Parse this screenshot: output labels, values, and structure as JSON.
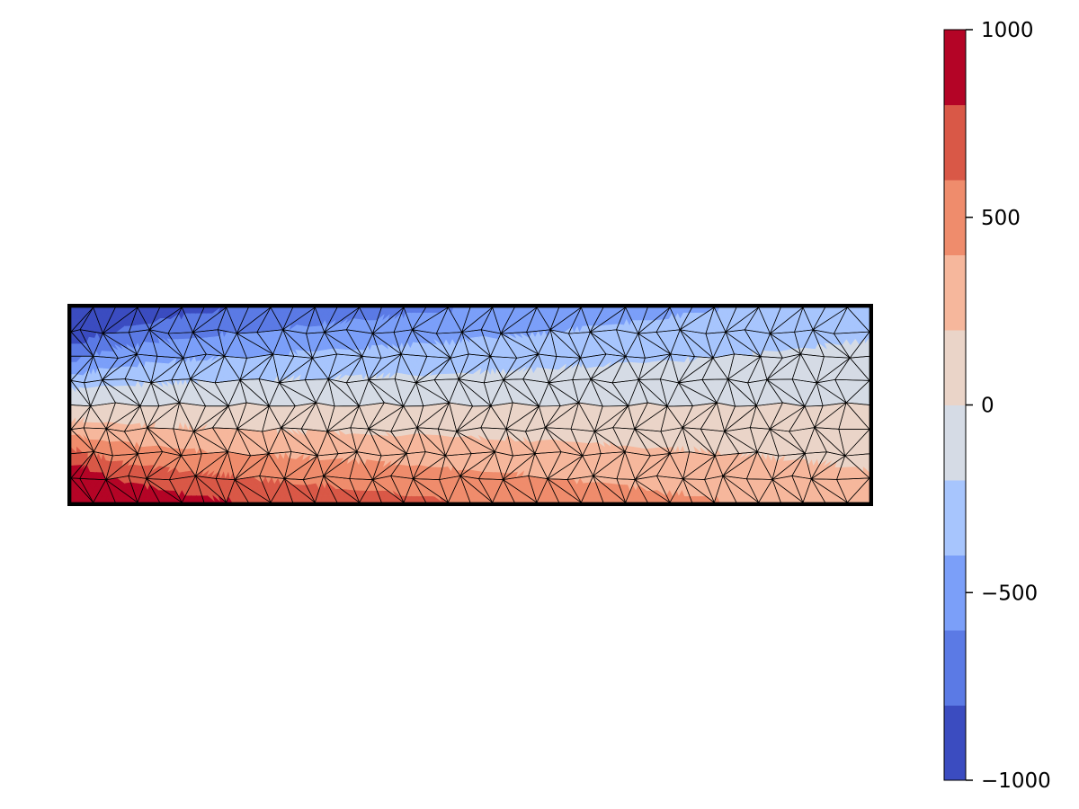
{
  "chart_data": {
    "type": "heatmap",
    "subtype": "filled-contour-on-triangular-mesh",
    "title": "",
    "xlabel": "",
    "ylabel": "",
    "axes_visible": false,
    "grid": false,
    "colormap": "coolwarm",
    "field": {
      "description_of_pattern": "bending-stress-like field: value = base * (y_fraction) with decay along x",
      "top_value_at_left": -1000,
      "bottom_value_at_left": 1000,
      "top_value_at_right": -300,
      "bottom_value_at_right": 300
    },
    "mesh": {
      "columns": 36,
      "rows": 8,
      "edge_color": "#000000"
    },
    "colorbar": {
      "position": "right",
      "min": -1000,
      "max": 1000,
      "levels": [
        -1000,
        -800,
        -600,
        -400,
        -200,
        0,
        200,
        400,
        600,
        800,
        1000
      ],
      "ticks": [
        1000,
        500,
        0,
        -500,
        -1000
      ],
      "tick_labels": [
        "1000",
        "500",
        "0",
        "−500",
        "−1000"
      ],
      "band_colors": [
        "#3b4cc0",
        "#5b7ae5",
        "#7b9ff9",
        "#a7c5fd",
        "#d5dbe5",
        "#ead4c8",
        "#f6b79c",
        "#ef8c6c",
        "#d95847",
        "#b40426"
      ]
    }
  }
}
